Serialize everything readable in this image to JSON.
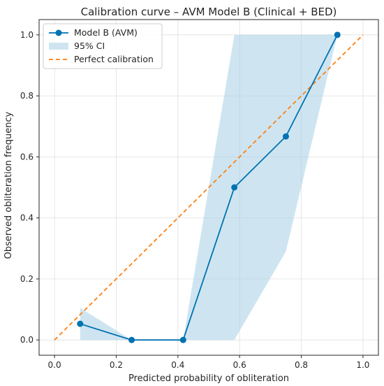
{
  "chart_data": {
    "type": "line",
    "title": "Calibration curve – AVM Model B (Clinical + BED)",
    "xlabel": "Predicted probability of obliteration",
    "ylabel": "Observed obliteration frequency",
    "xlim": [
      -0.05,
      1.05
    ],
    "ylim": [
      -0.05,
      1.05
    ],
    "xticks": [
      0.0,
      0.2,
      0.4,
      0.6,
      0.8,
      1.0
    ],
    "yticks": [
      0.0,
      0.2,
      0.4,
      0.6,
      0.8,
      1.0
    ],
    "xtick_labels": [
      "0.0",
      "0.2",
      "0.4",
      "0.6",
      "0.8",
      "1.0"
    ],
    "ytick_labels": [
      "0.0",
      "0.2",
      "0.4",
      "0.6",
      "0.8",
      "1.0"
    ],
    "grid": true,
    "legend_position": "top-left",
    "series": [
      {
        "name": "Model B (AVM)",
        "kind": "line-markers",
        "color": "#0072b2",
        "x": [
          0.083,
          0.25,
          0.417,
          0.583,
          0.75,
          0.917
        ],
        "y": [
          0.053,
          0.0,
          0.0,
          0.5,
          0.667,
          1.0
        ]
      },
      {
        "name": "95% CI",
        "kind": "band",
        "color": "#a6cfe6",
        "x": [
          0.083,
          0.25,
          0.417,
          0.583,
          0.75,
          0.917
        ],
        "lower": [
          0.0,
          0.0,
          0.0,
          0.0,
          0.29,
          1.0
        ],
        "upper": [
          0.105,
          0.0,
          0.0,
          1.0,
          1.0,
          1.0
        ]
      },
      {
        "name": "Perfect calibration",
        "kind": "dashed-line",
        "color": "#ff7f0e",
        "x": [
          0.0,
          1.0
        ],
        "y": [
          0.0,
          1.0
        ]
      }
    ]
  }
}
